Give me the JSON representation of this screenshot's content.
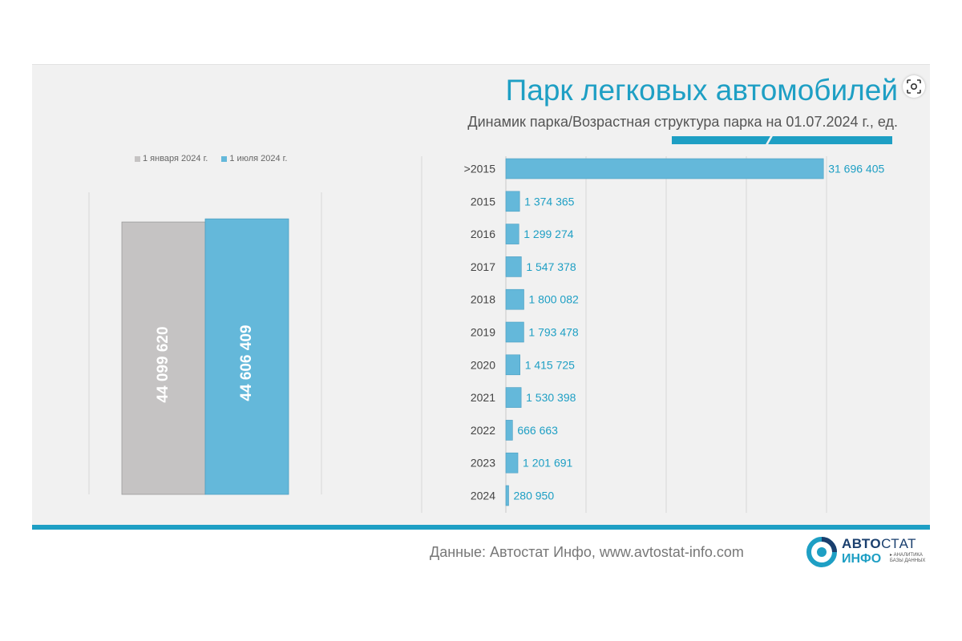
{
  "header": {
    "title": "Парк легковых автомобилей",
    "subtitle": "Динамик парка/Возрастная структура парка на 01.07.2024 г., ед."
  },
  "legend": {
    "items": [
      {
        "label": "1 января 2024 г.",
        "color": "#c5c3c3"
      },
      {
        "label": "1 июля 2024 г.",
        "color": "#64b8da"
      }
    ]
  },
  "footer": {
    "source": "Данные: Автостат Инфо, www.avtostat-info.com",
    "logo_line1_bold": "АВТО",
    "logo_line1_thin": "СТАТ",
    "logo_line2": "ИНФО",
    "logo_tagline": "▸ АНАЛИТИКА БАЗЫ ДАННЫХ"
  },
  "chart_data": [
    {
      "type": "bar",
      "categories": [
        "1 января 2024 г.",
        "1 июля 2024 г."
      ],
      "values": [
        44099620,
        44606409
      ],
      "labels": [
        "44 099 620",
        "44 606 409"
      ],
      "colors": [
        "#c5c3c3",
        "#64b8da"
      ],
      "ylim": [
        0,
        48000000
      ],
      "legend": "top-left"
    },
    {
      "type": "bar",
      "orientation": "horizontal",
      "categories": [
        ">2015",
        "2015",
        "2016",
        "2017",
        "2018",
        "2019",
        "2020",
        "2021",
        "2022",
        "2023",
        "2024"
      ],
      "values": [
        31696405,
        1374365,
        1299274,
        1547378,
        1800082,
        1793478,
        1415725,
        1530398,
        666663,
        1201691,
        280950
      ],
      "labels": [
        "31 696 405",
        "1 374 365",
        "1 299 274",
        "1 547 378",
        "1 800 082",
        "1 793 478",
        "1 415 725",
        "1 530 398",
        "666 663",
        "1 201 691",
        "280 950"
      ],
      "color": "#64b8da",
      "xlim": [
        0,
        32000000
      ],
      "grid": true
    }
  ]
}
